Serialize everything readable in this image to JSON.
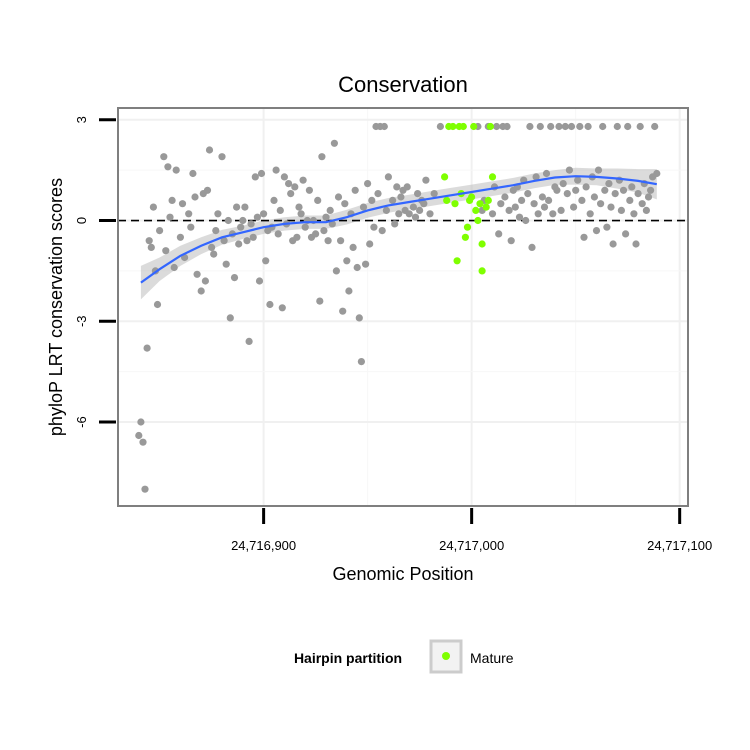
{
  "chart_data": {
    "type": "scatter",
    "title": "Conservation",
    "xlabel": "Genomic Position",
    "ylabel": "phyloP LRT conservation scores",
    "xlim": [
      24716830,
      24717104
    ],
    "ylim": [
      -8.5,
      3.35
    ],
    "x_ticks": [
      24716900,
      24717000,
      24717100
    ],
    "x_tick_labels": [
      "24,716,900",
      "24,717,000",
      "24,717,100"
    ],
    "y_ticks": [
      3,
      0,
      -3,
      -6
    ],
    "y_tick_labels": [
      "3",
      "0",
      "-3",
      "-6"
    ],
    "grid": true,
    "reference_line": {
      "y": 0,
      "style": "dashed"
    },
    "legend": {
      "title": "Hairpin partition",
      "position": "bottom",
      "entries": [
        "Mature"
      ]
    },
    "colors": {
      "other": "#999999",
      "mature": "#7FFF00",
      "smooth": "#3366FF",
      "ribbon": "#BEBEBE"
    },
    "series": [
      {
        "group": "other",
        "points": [
          [
            24716840,
            -6.4
          ],
          [
            24716841,
            -6.0
          ],
          [
            24716842,
            -6.6
          ],
          [
            24716843,
            -8.0
          ],
          [
            24716844,
            -3.8
          ],
          [
            24716845,
            -0.6
          ],
          [
            24716846,
            -0.8
          ],
          [
            24716847,
            0.4
          ],
          [
            24716848,
            -1.5
          ],
          [
            24716849,
            -2.5
          ],
          [
            24716850,
            -0.3
          ],
          [
            24716852,
            1.9
          ],
          [
            24716853,
            -0.9
          ],
          [
            24716854,
            1.6
          ],
          [
            24716855,
            0.1
          ],
          [
            24716856,
            0.6
          ],
          [
            24716857,
            -1.4
          ],
          [
            24716858,
            1.5
          ],
          [
            24716860,
            -0.5
          ],
          [
            24716861,
            0.5
          ],
          [
            24716862,
            -1.1
          ],
          [
            24716864,
            0.2
          ],
          [
            24716865,
            -0.2
          ],
          [
            24716866,
            1.4
          ],
          [
            24716867,
            0.7
          ],
          [
            24716868,
            -1.6
          ],
          [
            24716870,
            -2.1
          ],
          [
            24716871,
            0.8
          ],
          [
            24716872,
            -1.8
          ],
          [
            24716873,
            0.9
          ],
          [
            24716874,
            2.1
          ],
          [
            24716875,
            -0.8
          ],
          [
            24716876,
            -1.0
          ],
          [
            24716877,
            -0.3
          ],
          [
            24716878,
            0.2
          ],
          [
            24716880,
            1.9
          ],
          [
            24716881,
            -0.6
          ],
          [
            24716882,
            -1.3
          ],
          [
            24716883,
            0.0
          ],
          [
            24716884,
            -2.9
          ],
          [
            24716885,
            -0.4
          ],
          [
            24716886,
            -1.7
          ],
          [
            24716887,
            0.4
          ],
          [
            24716888,
            -0.7
          ],
          [
            24716889,
            -0.2
          ],
          [
            24716890,
            0.0
          ],
          [
            24716891,
            0.4
          ],
          [
            24716892,
            -0.6
          ],
          [
            24716893,
            -3.6
          ],
          [
            24716894,
            -0.1
          ],
          [
            24716895,
            -0.5
          ],
          [
            24716896,
            1.3
          ],
          [
            24716897,
            0.1
          ],
          [
            24716898,
            -1.8
          ],
          [
            24716899,
            1.4
          ],
          [
            24716900,
            0.2
          ],
          [
            24716901,
            -1.2
          ],
          [
            24716902,
            -0.3
          ],
          [
            24716903,
            -2.5
          ],
          [
            24716904,
            -0.2
          ],
          [
            24716905,
            0.6
          ],
          [
            24716906,
            1.5
          ],
          [
            24716907,
            -0.4
          ],
          [
            24716908,
            0.3
          ],
          [
            24716909,
            -2.6
          ],
          [
            24716910,
            1.3
          ],
          [
            24716911,
            -0.1
          ],
          [
            24716912,
            1.1
          ],
          [
            24716913,
            0.8
          ],
          [
            24716914,
            -0.6
          ],
          [
            24716915,
            1.0
          ],
          [
            24716916,
            -0.5
          ],
          [
            24716917,
            0.4
          ],
          [
            24716918,
            0.2
          ],
          [
            24716919,
            1.2
          ],
          [
            24716920,
            -0.2
          ],
          [
            24716921,
            0.0
          ],
          [
            24716922,
            0.9
          ],
          [
            24716923,
            -0.5
          ],
          [
            24716924,
            0.0
          ],
          [
            24716925,
            -0.4
          ],
          [
            24716926,
            0.6
          ],
          [
            24716927,
            -2.4
          ],
          [
            24716928,
            1.9
          ],
          [
            24716929,
            -0.3
          ],
          [
            24716930,
            0.1
          ],
          [
            24716931,
            -0.6
          ],
          [
            24716932,
            0.3
          ],
          [
            24716933,
            -0.1
          ],
          [
            24716934,
            2.3
          ],
          [
            24716935,
            -1.5
          ],
          [
            24716936,
            0.7
          ],
          [
            24716937,
            -0.6
          ],
          [
            24716938,
            -2.7
          ],
          [
            24716939,
            0.5
          ],
          [
            24716940,
            -1.2
          ],
          [
            24716941,
            -2.1
          ],
          [
            24716942,
            0.2
          ],
          [
            24716943,
            -0.8
          ],
          [
            24716944,
            0.9
          ],
          [
            24716945,
            -1.4
          ],
          [
            24716946,
            -2.9
          ],
          [
            24716947,
            -4.2
          ],
          [
            24716948,
            0.4
          ],
          [
            24716949,
            -1.3
          ],
          [
            24716950,
            1.1
          ],
          [
            24716951,
            -0.7
          ],
          [
            24716952,
            0.6
          ],
          [
            24716953,
            -0.2
          ],
          [
            24716954,
            2.8
          ],
          [
            24716955,
            0.8
          ],
          [
            24716956,
            2.8
          ],
          [
            24716957,
            -0.3
          ],
          [
            24716958,
            2.8
          ],
          [
            24716959,
            0.3
          ],
          [
            24716960,
            1.3
          ],
          [
            24716962,
            0.6
          ],
          [
            24716963,
            -0.1
          ],
          [
            24716964,
            1.0
          ],
          [
            24716965,
            0.2
          ],
          [
            24716966,
            0.7
          ],
          [
            24716967,
            0.9
          ],
          [
            24716968,
            0.3
          ],
          [
            24716969,
            1.0
          ],
          [
            24716970,
            0.2
          ],
          [
            24716972,
            0.4
          ],
          [
            24716973,
            0.1
          ],
          [
            24716974,
            0.8
          ],
          [
            24716975,
            0.3
          ],
          [
            24716976,
            0.6
          ],
          [
            24716977,
            0.5
          ],
          [
            24716978,
            1.2
          ],
          [
            24716980,
            0.2
          ],
          [
            24716982,
            0.8
          ],
          [
            24716985,
            2.8
          ],
          [
            24717003,
            2.8
          ],
          [
            24717005,
            0.3
          ],
          [
            24717006,
            0.6
          ],
          [
            24717008,
            2.8
          ],
          [
            24717010,
            0.2
          ],
          [
            24717011,
            1.0
          ],
          [
            24717012,
            2.8
          ],
          [
            24717013,
            -0.4
          ],
          [
            24717014,
            0.5
          ],
          [
            24717015,
            2.8
          ],
          [
            24717016,
            0.7
          ],
          [
            24717017,
            2.8
          ],
          [
            24717018,
            0.3
          ],
          [
            24717019,
            -0.6
          ],
          [
            24717020,
            0.9
          ],
          [
            24717021,
            0.4
          ],
          [
            24717022,
            1.0
          ],
          [
            24717023,
            0.1
          ],
          [
            24717024,
            0.6
          ],
          [
            24717025,
            1.2
          ],
          [
            24717026,
            0.0
          ],
          [
            24717027,
            0.8
          ],
          [
            24717028,
            2.8
          ],
          [
            24717029,
            -0.8
          ],
          [
            24717030,
            0.5
          ],
          [
            24717031,
            1.3
          ],
          [
            24717032,
            0.2
          ],
          [
            24717033,
            2.8
          ],
          [
            24717034,
            0.7
          ],
          [
            24717035,
            0.4
          ],
          [
            24717036,
            1.4
          ],
          [
            24717037,
            0.6
          ],
          [
            24717038,
            2.8
          ],
          [
            24717039,
            0.2
          ],
          [
            24717040,
            1.0
          ],
          [
            24717041,
            0.9
          ],
          [
            24717042,
            2.8
          ],
          [
            24717043,
            0.3
          ],
          [
            24717044,
            1.1
          ],
          [
            24717045,
            2.8
          ],
          [
            24717046,
            0.8
          ],
          [
            24717047,
            1.5
          ],
          [
            24717048,
            2.8
          ],
          [
            24717049,
            0.4
          ],
          [
            24717050,
            0.9
          ],
          [
            24717051,
            1.2
          ],
          [
            24717052,
            2.8
          ],
          [
            24717053,
            0.6
          ],
          [
            24717054,
            -0.5
          ],
          [
            24717055,
            1.0
          ],
          [
            24717056,
            2.8
          ],
          [
            24717057,
            0.2
          ],
          [
            24717058,
            1.3
          ],
          [
            24717059,
            0.7
          ],
          [
            24717060,
            -0.3
          ],
          [
            24717061,
            1.5
          ],
          [
            24717062,
            0.5
          ],
          [
            24717063,
            2.8
          ],
          [
            24717064,
            0.9
          ],
          [
            24717065,
            -0.2
          ],
          [
            24717066,
            1.1
          ],
          [
            24717067,
            0.4
          ],
          [
            24717068,
            -0.7
          ],
          [
            24717069,
            0.8
          ],
          [
            24717070,
            2.8
          ],
          [
            24717071,
            1.2
          ],
          [
            24717072,
            0.3
          ],
          [
            24717073,
            0.9
          ],
          [
            24717074,
            -0.4
          ],
          [
            24717075,
            2.8
          ],
          [
            24717076,
            0.6
          ],
          [
            24717077,
            1.0
          ],
          [
            24717078,
            0.2
          ],
          [
            24717079,
            -0.7
          ],
          [
            24717080,
            0.8
          ],
          [
            24717081,
            2.8
          ],
          [
            24717082,
            0.5
          ],
          [
            24717083,
            1.1
          ],
          [
            24717084,
            0.3
          ],
          [
            24717085,
            0.7
          ],
          [
            24717086,
            0.9
          ],
          [
            24717087,
            1.3
          ],
          [
            24717088,
            2.8
          ],
          [
            24717089,
            1.4
          ]
        ]
      },
      {
        "group": "mature",
        "points": [
          [
            24716987,
            1.3
          ],
          [
            24716988,
            0.6
          ],
          [
            24716989,
            2.8
          ],
          [
            24716991,
            2.8
          ],
          [
            24716992,
            0.5
          ],
          [
            24716993,
            -1.2
          ],
          [
            24716994,
            2.8
          ],
          [
            24716995,
            0.8
          ],
          [
            24716996,
            2.8
          ],
          [
            24716997,
            -0.5
          ],
          [
            24716998,
            -0.2
          ],
          [
            24716999,
            0.6
          ],
          [
            24717000,
            0.7
          ],
          [
            24717001,
            2.8
          ],
          [
            24717002,
            0.3
          ],
          [
            24717003,
            0.0
          ],
          [
            24717004,
            0.5
          ],
          [
            24717005,
            -0.7
          ],
          [
            24717005,
            -1.5
          ],
          [
            24717007,
            0.4
          ],
          [
            24717008,
            0.6
          ],
          [
            24717009,
            2.8
          ],
          [
            24717010,
            1.3
          ]
        ]
      }
    ],
    "smooth_curve": [
      [
        24716841,
        -1.85,
        0.5
      ],
      [
        24716850,
        -1.45,
        0.35
      ],
      [
        24716860,
        -1.05,
        0.3
      ],
      [
        24716870,
        -0.75,
        0.25
      ],
      [
        24716880,
        -0.5,
        0.22
      ],
      [
        24716890,
        -0.35,
        0.2
      ],
      [
        24716900,
        -0.2,
        0.2
      ],
      [
        24716910,
        -0.1,
        0.2
      ],
      [
        24716920,
        -0.05,
        0.2
      ],
      [
        24716930,
        -0.05,
        0.2
      ],
      [
        24716940,
        0.1,
        0.22
      ],
      [
        24716950,
        0.3,
        0.22
      ],
      [
        24716960,
        0.45,
        0.22
      ],
      [
        24716970,
        0.55,
        0.22
      ],
      [
        24716980,
        0.65,
        0.22
      ],
      [
        24716990,
        0.75,
        0.22
      ],
      [
        24717000,
        0.85,
        0.22
      ],
      [
        24717010,
        0.95,
        0.22
      ],
      [
        24717020,
        1.05,
        0.22
      ],
      [
        24717030,
        1.18,
        0.22
      ],
      [
        24717040,
        1.28,
        0.22
      ],
      [
        24717050,
        1.32,
        0.25
      ],
      [
        24717060,
        1.3,
        0.25
      ],
      [
        24717070,
        1.25,
        0.3
      ],
      [
        24717080,
        1.18,
        0.35
      ],
      [
        24717089,
        1.08,
        0.45
      ]
    ]
  }
}
